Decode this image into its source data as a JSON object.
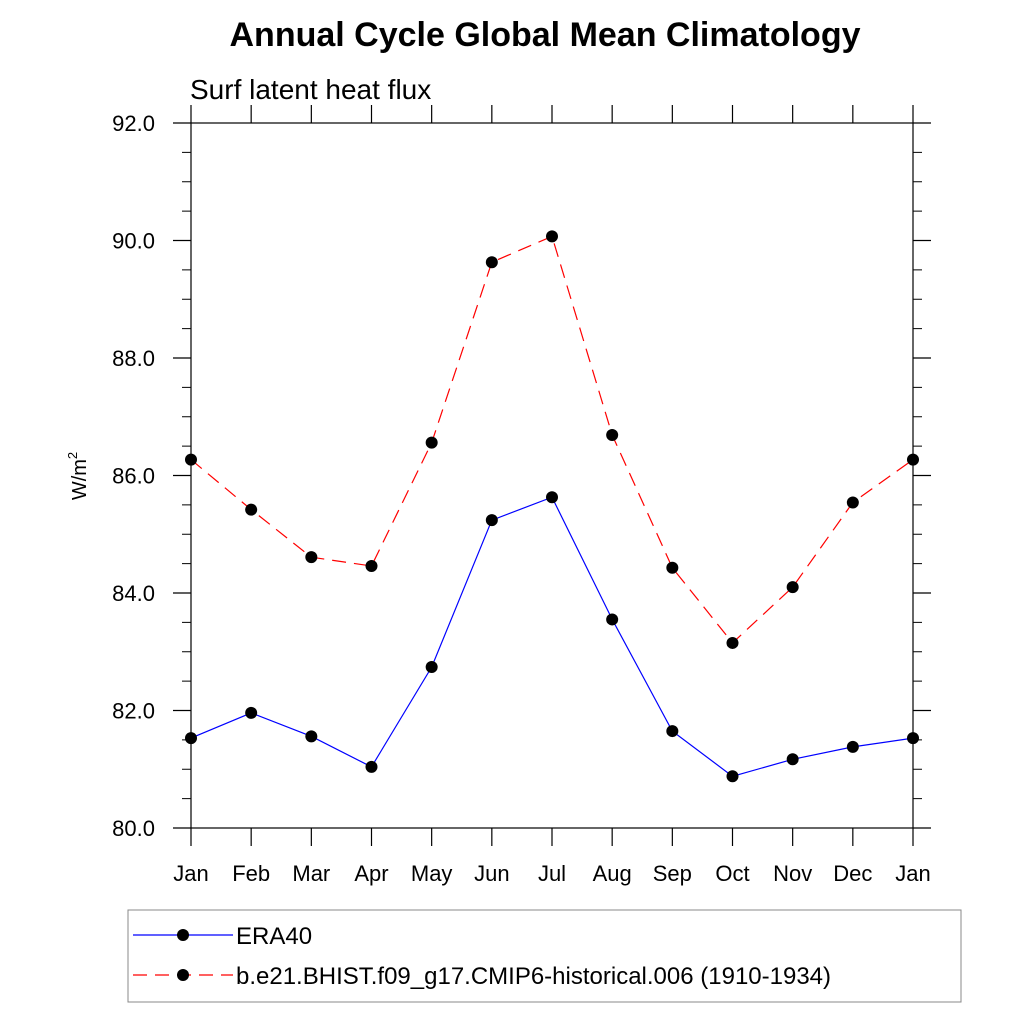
{
  "chart_data": {
    "type": "line",
    "title": "Annual Cycle Global Mean Climatology",
    "subtitle": "Surf latent heat flux",
    "ylabel": "W/m",
    "ylabel_superscript": "2",
    "categories": [
      "Jan",
      "Feb",
      "Mar",
      "Apr",
      "May",
      "Jun",
      "Jul",
      "Aug",
      "Sep",
      "Oct",
      "Nov",
      "Dec",
      "Jan"
    ],
    "ylim": [
      80.0,
      92.0
    ],
    "yticks": [
      "80.0",
      "82.0",
      "84.0",
      "86.0",
      "88.0",
      "90.0",
      "92.0"
    ],
    "grid": false,
    "legend_position": "bottom",
    "series": [
      {
        "name": "ERA40",
        "color": "#0000ff",
        "line_style": "solid",
        "marker": "filled-circle",
        "values": [
          81.53,
          81.96,
          81.56,
          81.04,
          82.74,
          85.24,
          85.63,
          83.55,
          81.65,
          80.88,
          81.17,
          81.38,
          81.53
        ]
      },
      {
        "name": "b.e21.BHIST.f09_g17.CMIP6-historical.006 (1910-1934)",
        "color": "#ff0000",
        "line_style": "dashed",
        "marker": "filled-circle",
        "values": [
          86.27,
          85.42,
          84.61,
          84.46,
          86.56,
          89.63,
          90.07,
          86.69,
          84.43,
          83.15,
          84.1,
          85.54,
          86.27
        ]
      }
    ]
  }
}
